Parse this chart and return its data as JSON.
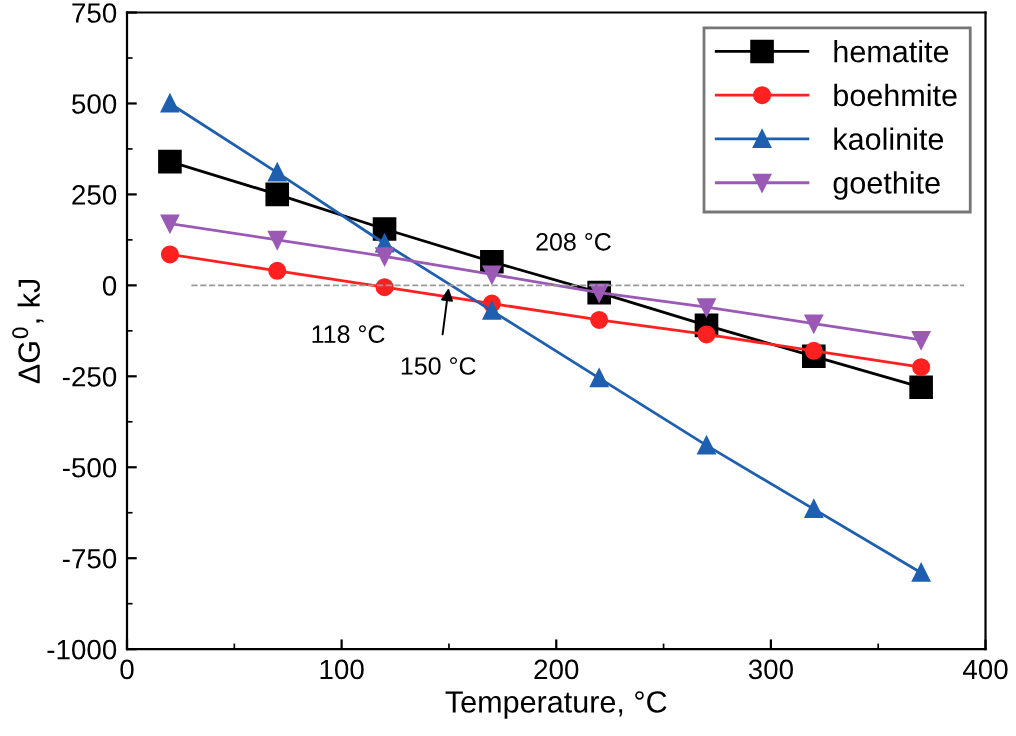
{
  "chart_data": {
    "type": "line",
    "xlabel": "Temperature, °C",
    "ylabel": "ΔG$^{0}$, kJ",
    "x": [
      20,
      70,
      120,
      170,
      220,
      270,
      320,
      370
    ],
    "series": [
      {
        "name": "hematite",
        "color": "#000000",
        "marker": "square",
        "values": [
          340,
          250,
          155,
          65,
          -20,
          -110,
          -195,
          -280
        ]
      },
      {
        "name": "boehmite",
        "color": "#ff2020",
        "marker": "circle",
        "values": [
          85,
          40,
          -5,
          -50,
          -95,
          -135,
          -180,
          -225
        ]
      },
      {
        "name": "kaolinite",
        "color": "#1f5fb0",
        "marker": "triangle",
        "values": [
          500,
          310,
          115,
          -70,
          -255,
          -440,
          -615,
          -790
        ]
      },
      {
        "name": "goethite",
        "color": "#9b59b6",
        "marker": "triangle_down",
        "values": [
          170,
          125,
          80,
          30,
          -20,
          -60,
          -105,
          -150
        ]
      }
    ],
    "xlim": [
      0,
      400
    ],
    "xticks": [
      0,
      100,
      200,
      300,
      400
    ],
    "ylim": [
      -1000,
      750
    ],
    "yticks": [
      -1000,
      -750,
      -500,
      -250,
      0,
      250,
      500,
      750
    ],
    "ref_lines": [
      {
        "axis": "y",
        "value": 0,
        "color": "#999999",
        "line_style": "dashed"
      }
    ],
    "annotations": [
      {
        "text": "118 °C",
        "x": 118,
        "y": 0
      },
      {
        "text": "150 °C",
        "x": 150,
        "y": 0
      },
      {
        "text": "208 °C",
        "x": 208,
        "y": 0
      }
    ],
    "legend": "top right",
    "grid": false,
    "line_style": "solid"
  }
}
